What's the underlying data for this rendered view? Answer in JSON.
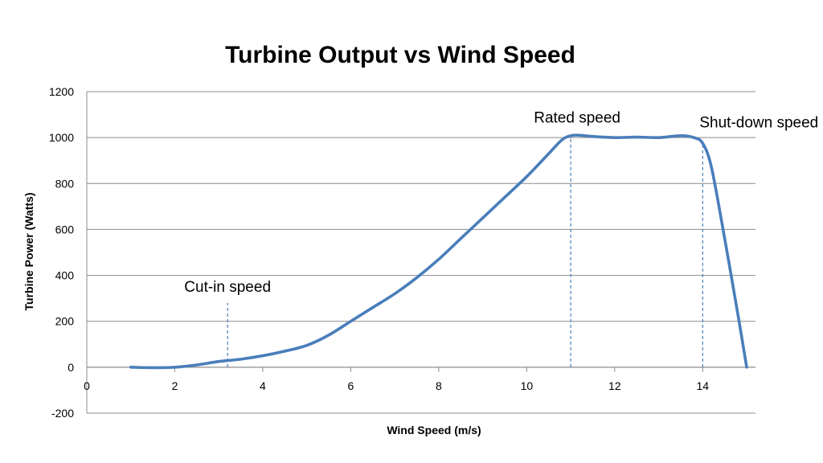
{
  "chart_data": {
    "type": "line",
    "title": "Turbine Output vs Wind Speed",
    "xlabel": "Wind Speed (m/s)",
    "ylabel": "Turbine Power (Watts)",
    "xlim": [
      0,
      15.2
    ],
    "ylim": [
      -200,
      1200
    ],
    "x_ticks": [
      0,
      2,
      4,
      6,
      8,
      10,
      12,
      14
    ],
    "y_ticks": [
      -200,
      0,
      200,
      400,
      600,
      800,
      1000,
      1200
    ],
    "grid": "horizontal",
    "legend": "none",
    "line_color": "#4a7ebb",
    "guide_color": "#4a7ebb",
    "series": [
      {
        "x": [
          1,
          1.5,
          2,
          2.5,
          3,
          3.5,
          4,
          4.5,
          5,
          5.5,
          6,
          6.5,
          7,
          7.5,
          8,
          8.5,
          9,
          9.5,
          10,
          10.5,
          10.8,
          11,
          11.2,
          11.5,
          12,
          12.5,
          13,
          13.5,
          13.8,
          14,
          14.2,
          14.5,
          14.8,
          15
        ],
        "y": [
          0,
          -2,
          0,
          10,
          25,
          35,
          50,
          70,
          95,
          140,
          200,
          260,
          320,
          390,
          470,
          560,
          650,
          740,
          830,
          930,
          990,
          1008,
          1010,
          1005,
          1000,
          1002,
          1000,
          1008,
          1000,
          975,
          870,
          560,
          230,
          0
        ]
      }
    ],
    "annotations": [
      {
        "text": "Cut-in speed",
        "x": 3.2,
        "y_from": 0,
        "y_to": 280
      },
      {
        "text": "Rated speed",
        "x": 11,
        "y_from": 0,
        "y_to": 1010
      },
      {
        "text": "Shut-down speed",
        "x": 14,
        "y_from": 0,
        "y_to": 975
      }
    ]
  }
}
